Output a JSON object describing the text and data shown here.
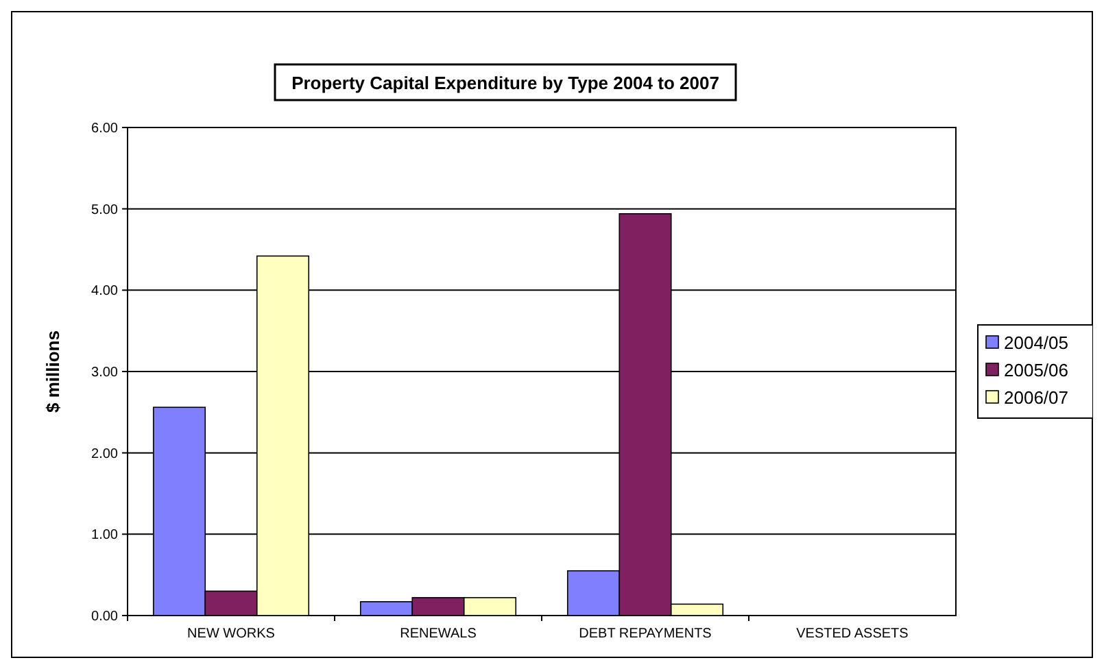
{
  "chart_data": {
    "type": "bar",
    "title": "Property Capital Expenditure by Type 2004 to 2007",
    "ylabel": "$ millions",
    "categories": [
      "NEW WORKS",
      "RENEWALS",
      "DEBT REPAYMENTS",
      "VESTED ASSETS"
    ],
    "series": [
      {
        "name": "2004/05",
        "color": "#8080ff",
        "values": [
          2.56,
          0.17,
          0.55,
          0
        ]
      },
      {
        "name": "2005/06",
        "color": "#802060",
        "values": [
          0.3,
          0.22,
          4.94,
          0
        ]
      },
      {
        "name": "2006/07",
        "color": "#ffffc0",
        "values": [
          4.42,
          0.22,
          0.14,
          0
        ]
      }
    ],
    "ylim": [
      0,
      6
    ],
    "yticks": [
      {
        "value": 0,
        "label": "0.00"
      },
      {
        "value": 1,
        "label": "1.00"
      },
      {
        "value": 2,
        "label": "2.00"
      },
      {
        "value": 3,
        "label": "3.00"
      },
      {
        "value": 4,
        "label": "4.00"
      },
      {
        "value": 5,
        "label": "5.00"
      },
      {
        "value": 6,
        "label": "6.00"
      }
    ],
    "grid": "y",
    "legend": "right"
  }
}
